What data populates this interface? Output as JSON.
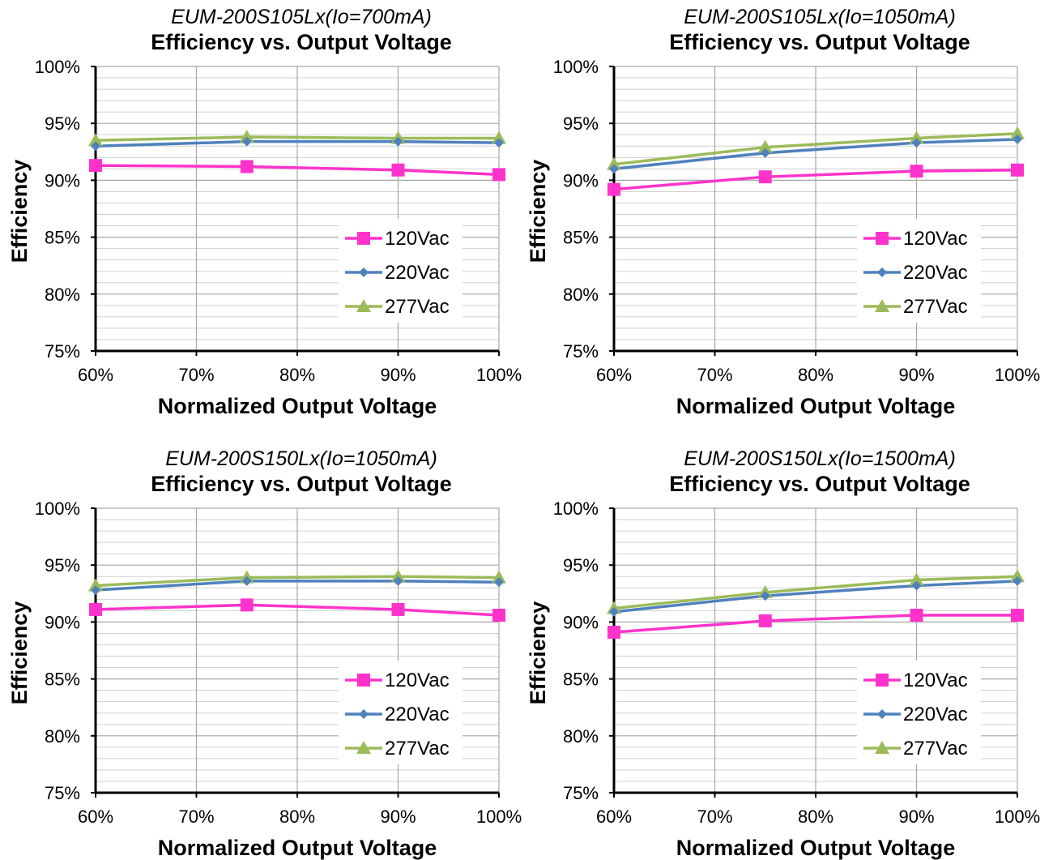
{
  "chart_data": [
    {
      "type": "line",
      "subtitle": "EUM-200S105Lx(Io=700mA)",
      "title": "Efficiency vs. Output Voltage",
      "xlabel": "Normalized Output Voltage",
      "ylabel": "Efficiency",
      "x": [
        60,
        75,
        90,
        100
      ],
      "xlim": [
        60,
        100
      ],
      "ylim": [
        75,
        100
      ],
      "x_ticks": [
        "60%",
        "70%",
        "80%",
        "90%",
        "100%"
      ],
      "y_ticks": [
        "75%",
        "80%",
        "85%",
        "90%",
        "95%",
        "100%"
      ],
      "grid": true,
      "legend_position": "bottom-right",
      "series": [
        {
          "name": "120Vac",
          "color": "#ff33cc",
          "marker": "square",
          "values": [
            91.3,
            91.2,
            90.9,
            90.5
          ]
        },
        {
          "name": "220Vac",
          "color": "#4f81bd",
          "marker": "diamond",
          "values": [
            93.0,
            93.4,
            93.4,
            93.3
          ]
        },
        {
          "name": "277Vac",
          "color": "#9bbb59",
          "marker": "triangle",
          "values": [
            93.5,
            93.8,
            93.7,
            93.7
          ]
        }
      ]
    },
    {
      "type": "line",
      "subtitle": "EUM-200S105Lx(Io=1050mA)",
      "title": "Efficiency vs. Output Voltage",
      "xlabel": "Normalized Output Voltage",
      "ylabel": "Efficiency",
      "x": [
        60,
        75,
        90,
        100
      ],
      "xlim": [
        60,
        100
      ],
      "ylim": [
        75,
        100
      ],
      "x_ticks": [
        "60%",
        "70%",
        "80%",
        "90%",
        "100%"
      ],
      "y_ticks": [
        "75%",
        "80%",
        "85%",
        "90%",
        "95%",
        "100%"
      ],
      "grid": true,
      "legend_position": "bottom-right",
      "series": [
        {
          "name": "120Vac",
          "color": "#ff33cc",
          "marker": "square",
          "values": [
            89.2,
            90.3,
            90.8,
            90.9
          ]
        },
        {
          "name": "220Vac",
          "color": "#4f81bd",
          "marker": "diamond",
          "values": [
            91.0,
            92.4,
            93.3,
            93.6
          ]
        },
        {
          "name": "277Vac",
          "color": "#9bbb59",
          "marker": "triangle",
          "values": [
            91.4,
            92.9,
            93.7,
            94.1
          ]
        }
      ]
    },
    {
      "type": "line",
      "subtitle": "EUM-200S150Lx(Io=1050mA)",
      "title": "Efficiency vs. Output Voltage",
      "xlabel": "Normalized Output Voltage",
      "ylabel": "Efficiency",
      "x": [
        60,
        75,
        90,
        100
      ],
      "xlim": [
        60,
        100
      ],
      "ylim": [
        75,
        100
      ],
      "x_ticks": [
        "60%",
        "70%",
        "80%",
        "90%",
        "100%"
      ],
      "y_ticks": [
        "75%",
        "80%",
        "85%",
        "90%",
        "95%",
        "100%"
      ],
      "grid": true,
      "legend_position": "bottom-right",
      "series": [
        {
          "name": "120Vac",
          "color": "#ff33cc",
          "marker": "square",
          "values": [
            91.1,
            91.5,
            91.1,
            90.6
          ]
        },
        {
          "name": "220Vac",
          "color": "#4f81bd",
          "marker": "diamond",
          "values": [
            92.8,
            93.6,
            93.6,
            93.5
          ]
        },
        {
          "name": "277Vac",
          "color": "#9bbb59",
          "marker": "triangle",
          "values": [
            93.2,
            93.9,
            94.0,
            93.9
          ]
        }
      ]
    },
    {
      "type": "line",
      "subtitle": "EUM-200S150Lx(Io=1500mA)",
      "title": "Efficiency vs. Output Voltage",
      "xlabel": "Normalized Output Voltage",
      "ylabel": "Efficiency",
      "x": [
        60,
        75,
        90,
        100
      ],
      "xlim": [
        60,
        100
      ],
      "ylim": [
        75,
        100
      ],
      "x_ticks": [
        "60%",
        "70%",
        "80%",
        "90%",
        "100%"
      ],
      "y_ticks": [
        "75%",
        "80%",
        "85%",
        "90%",
        "95%",
        "100%"
      ],
      "grid": true,
      "legend_position": "bottom-right",
      "series": [
        {
          "name": "120Vac",
          "color": "#ff33cc",
          "marker": "square",
          "values": [
            89.1,
            90.1,
            90.6,
            90.6
          ]
        },
        {
          "name": "220Vac",
          "color": "#4f81bd",
          "marker": "diamond",
          "values": [
            90.9,
            92.3,
            93.2,
            93.6
          ]
        },
        {
          "name": "277Vac",
          "color": "#9bbb59",
          "marker": "triangle",
          "values": [
            91.2,
            92.6,
            93.7,
            94.0
          ]
        }
      ]
    }
  ]
}
